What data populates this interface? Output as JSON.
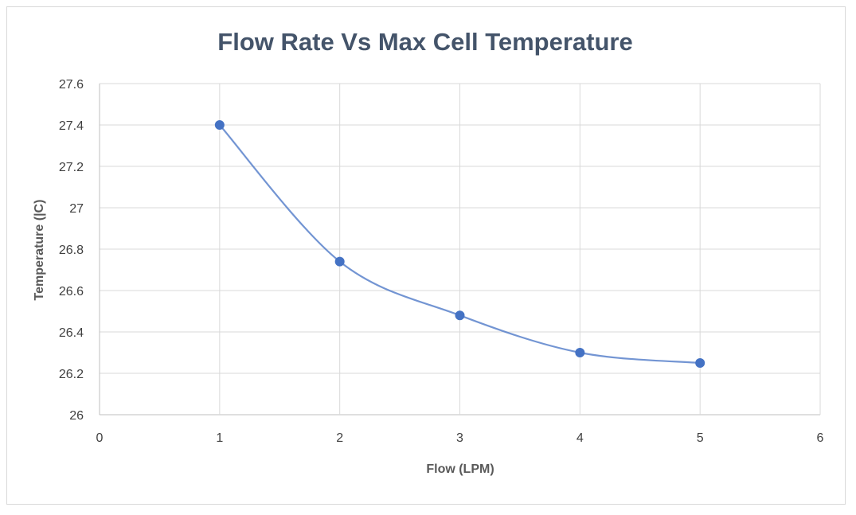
{
  "chart_data": {
    "type": "scatter",
    "title": "Flow Rate Vs Max Cell Temperature",
    "xlabel": "Flow (LPM)",
    "ylabel": "Temperature (|C)",
    "xlim": [
      0,
      6
    ],
    "ylim": [
      26,
      27.6
    ],
    "x_ticks": [
      "0",
      "1",
      "2",
      "3",
      "4",
      "5",
      "6"
    ],
    "y_ticks": [
      "26",
      "26.2",
      "26.4",
      "26.6",
      "26.8",
      "27",
      "27.2",
      "27.4",
      "27.6"
    ],
    "grid": true,
    "legend": "none",
    "line_style": "smooth",
    "series": [
      {
        "color": "#4472c4",
        "points": [
          {
            "x": 1,
            "y": 27.4
          },
          {
            "x": 2,
            "y": 26.74
          },
          {
            "x": 3,
            "y": 26.48
          },
          {
            "x": 4,
            "y": 26.3
          },
          {
            "x": 5,
            "y": 26.25
          }
        ]
      }
    ]
  }
}
